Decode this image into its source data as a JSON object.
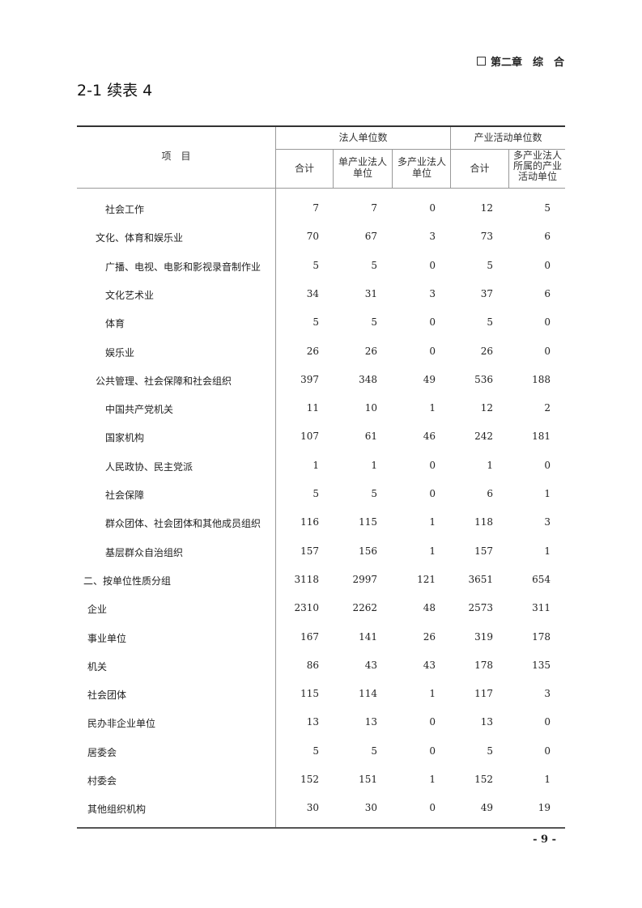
{
  "header": {
    "chapter": "第二章　综　合",
    "title": "2-1 续表 4"
  },
  "table": {
    "item_header": "项　目",
    "group_headers": [
      "法人单位数",
      "产业活动单位数"
    ],
    "sub_headers": [
      "合计",
      "单产业法人单位",
      "多产业法人单位",
      "合计",
      "多产业法人所属的产业活动单位"
    ],
    "rows": [
      {
        "label": "社会工作",
        "level": 2,
        "values": [
          "7",
          "7",
          "0",
          "12",
          "5"
        ]
      },
      {
        "label": "文化、体育和娱乐业",
        "level": 1,
        "values": [
          "70",
          "67",
          "3",
          "73",
          "6"
        ]
      },
      {
        "label": "广播、电视、电影和影视录音制作业",
        "level": 2,
        "values": [
          "5",
          "5",
          "0",
          "5",
          "0"
        ]
      },
      {
        "label": "文化艺术业",
        "level": 2,
        "values": [
          "34",
          "31",
          "3",
          "37",
          "6"
        ]
      },
      {
        "label": "体育",
        "level": 2,
        "values": [
          "5",
          "5",
          "0",
          "5",
          "0"
        ]
      },
      {
        "label": "娱乐业",
        "level": 2,
        "values": [
          "26",
          "26",
          "0",
          "26",
          "0"
        ]
      },
      {
        "label": "公共管理、社会保障和社会组织",
        "level": 1,
        "values": [
          "397",
          "348",
          "49",
          "536",
          "188"
        ]
      },
      {
        "label": "中国共产党机关",
        "level": 2,
        "values": [
          "11",
          "10",
          "1",
          "12",
          "2"
        ]
      },
      {
        "label": "国家机构",
        "level": 2,
        "values": [
          "107",
          "61",
          "46",
          "242",
          "181"
        ]
      },
      {
        "label": "人民政协、民主党派",
        "level": 2,
        "values": [
          "1",
          "1",
          "0",
          "1",
          "0"
        ]
      },
      {
        "label": "社会保障",
        "level": 2,
        "values": [
          "5",
          "5",
          "0",
          "6",
          "1"
        ]
      },
      {
        "label": "群众团体、社会团体和其他成员组织",
        "level": 2,
        "values": [
          "116",
          "115",
          "1",
          "118",
          "3"
        ]
      },
      {
        "label": "基层群众自治组织",
        "level": 2,
        "values": [
          "157",
          "156",
          "1",
          "157",
          "1"
        ]
      },
      {
        "label": "二、按单位性质分组",
        "level": 0,
        "values": [
          "3118",
          "2997",
          "121",
          "3651",
          "654"
        ]
      },
      {
        "label": "企业",
        "level": 3,
        "values": [
          "2310",
          "2262",
          "48",
          "2573",
          "311"
        ]
      },
      {
        "label": "事业单位",
        "level": 3,
        "values": [
          "167",
          "141",
          "26",
          "319",
          "178"
        ]
      },
      {
        "label": "机关",
        "level": 3,
        "values": [
          "86",
          "43",
          "43",
          "178",
          "135"
        ]
      },
      {
        "label": "社会团体",
        "level": 3,
        "values": [
          "115",
          "114",
          "1",
          "117",
          "3"
        ]
      },
      {
        "label": "民办非企业单位",
        "level": 3,
        "values": [
          "13",
          "13",
          "0",
          "13",
          "0"
        ]
      },
      {
        "label": "居委会",
        "level": 3,
        "values": [
          "5",
          "5",
          "0",
          "5",
          "0"
        ]
      },
      {
        "label": "村委会",
        "level": 3,
        "values": [
          "152",
          "151",
          "1",
          "152",
          "1"
        ]
      },
      {
        "label": "其他组织机构",
        "level": 3,
        "values": [
          "30",
          "30",
          "0",
          "49",
          "19"
        ]
      }
    ]
  },
  "footer": {
    "page_number": "- 9 -"
  }
}
